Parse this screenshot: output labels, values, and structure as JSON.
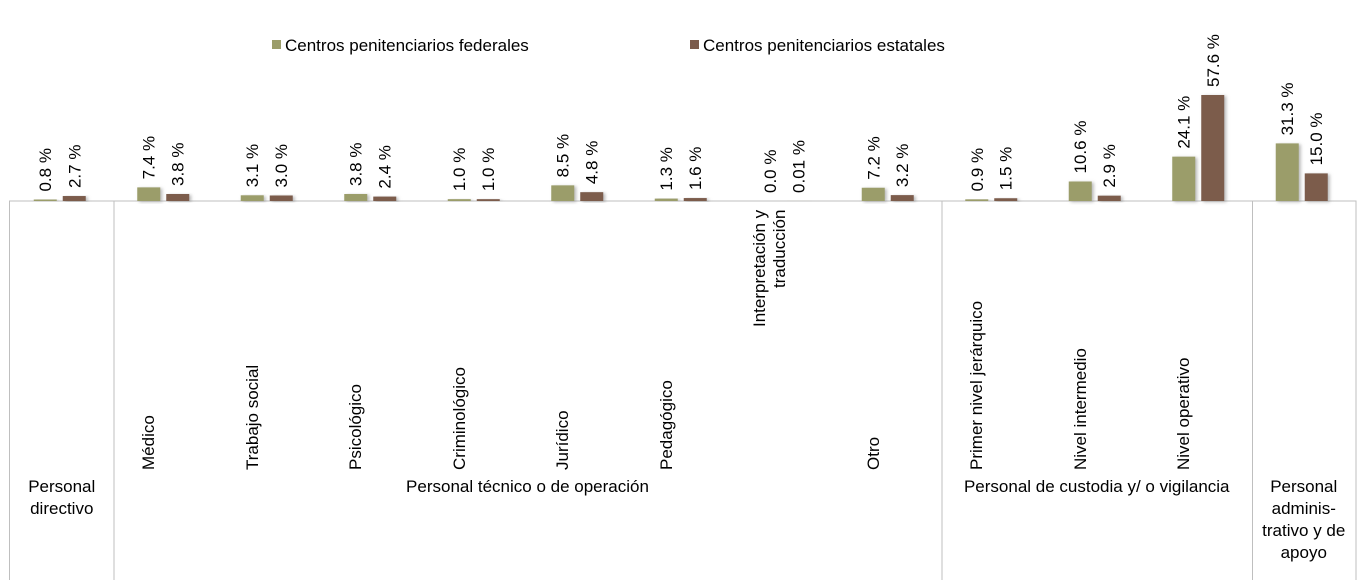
{
  "chart_data": {
    "type": "bar",
    "groups": [
      {
        "label": "Personal directivo",
        "categories": [
          null
        ]
      },
      {
        "label": "Personal técnico o de operación",
        "categories": [
          "Médico",
          "Trabajo social",
          "Psicológico",
          "Criminológico",
          "Jurídico",
          "Pedagógico",
          "Interpretación y traducción",
          "Otro"
        ]
      },
      {
        "label": "Personal de custodia y/ o vigilancia",
        "categories": [
          "Primer nivel jerárquico",
          "Nivel intermedio",
          "Nivel operativo"
        ]
      },
      {
        "label": "Personal adminis-trativo y de apoyo",
        "categories": [
          null
        ]
      }
    ],
    "series": [
      {
        "name": "Centros penitenciarios federales",
        "color": "#9b9d6a",
        "values": [
          0.8,
          7.4,
          3.1,
          3.8,
          1.0,
          8.5,
          1.3,
          0.0,
          7.2,
          0.9,
          10.6,
          24.1,
          31.3
        ],
        "value_labels": [
          "0.8 %",
          "7.4 %",
          "3.1 %",
          "3.8 %",
          "1.0 %",
          "8.5 %",
          "1.3 %",
          "0.0 %",
          "7.2 %",
          "0.9 %",
          "10.6 %",
          "24.1 %",
          "31.3 %"
        ]
      },
      {
        "name": "Centros penitenciarios estatales",
        "color": "#7b5b4c",
        "values": [
          2.7,
          3.8,
          3.0,
          2.4,
          1.0,
          4.8,
          1.6,
          0.01,
          3.2,
          1.5,
          2.9,
          57.6,
          15.0
        ],
        "value_labels": [
          "2.7 %",
          "3.8 %",
          "3.0 %",
          "2.4 %",
          "1.0 %",
          "4.8 %",
          "1.6 %",
          "0.01 %",
          "3.2 %",
          "1.5 %",
          "2.9 %",
          "57.6 %",
          "15.0 %"
        ]
      }
    ],
    "legend": "top"
  }
}
